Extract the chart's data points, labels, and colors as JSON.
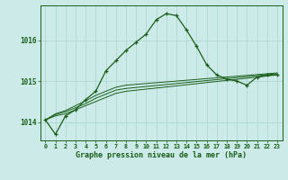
{
  "title": "Graphe pression niveau de la mer (hPa)",
  "background_color": "#cceae7",
  "grid_color": "#b0d8d4",
  "line_color": "#1a5e1a",
  "marker_color": "#1a5e1a",
  "xlim": [
    -0.5,
    23.5
  ],
  "ylim": [
    1013.55,
    1016.85
  ],
  "yticks": [
    1014,
    1015,
    1016
  ],
  "xtick_labels": [
    "0",
    "1",
    "2",
    "3",
    "4",
    "5",
    "6",
    "7",
    "8",
    "9",
    "10",
    "11",
    "12",
    "13",
    "14",
    "15",
    "16",
    "17",
    "18",
    "19",
    "20",
    "21",
    "22",
    "23"
  ],
  "series1": {
    "x": [
      0,
      1,
      2,
      3,
      4,
      5,
      6,
      7,
      8,
      9,
      10,
      11,
      12,
      13,
      14,
      15,
      16,
      17,
      18,
      19,
      20,
      21,
      22,
      23
    ],
    "y": [
      1014.05,
      1013.7,
      1014.15,
      1014.3,
      1014.55,
      1014.75,
      1015.25,
      1015.5,
      1015.75,
      1015.95,
      1016.15,
      1016.5,
      1016.65,
      1016.6,
      1016.25,
      1015.85,
      1015.4,
      1015.15,
      1015.05,
      1015.0,
      1014.9,
      1015.1,
      1015.15,
      1015.15
    ]
  },
  "series2": {
    "x": [
      0,
      1,
      2,
      3,
      4,
      5,
      6,
      7,
      8,
      23
    ],
    "y": [
      1014.05,
      1014.15,
      1014.2,
      1014.3,
      1014.4,
      1014.5,
      1014.6,
      1014.7,
      1014.75,
      1015.15
    ]
  },
  "series3": {
    "x": [
      0,
      1,
      2,
      3,
      4,
      5,
      6,
      7,
      8,
      23
    ],
    "y": [
      1014.05,
      1014.18,
      1014.25,
      1014.35,
      1014.45,
      1014.58,
      1014.68,
      1014.78,
      1014.82,
      1015.18
    ]
  },
  "series4": {
    "x": [
      0,
      1,
      2,
      3,
      4,
      5,
      6,
      7,
      8,
      23
    ],
    "y": [
      1014.05,
      1014.2,
      1014.28,
      1014.4,
      1014.52,
      1014.65,
      1014.75,
      1014.85,
      1014.9,
      1015.2
    ]
  }
}
